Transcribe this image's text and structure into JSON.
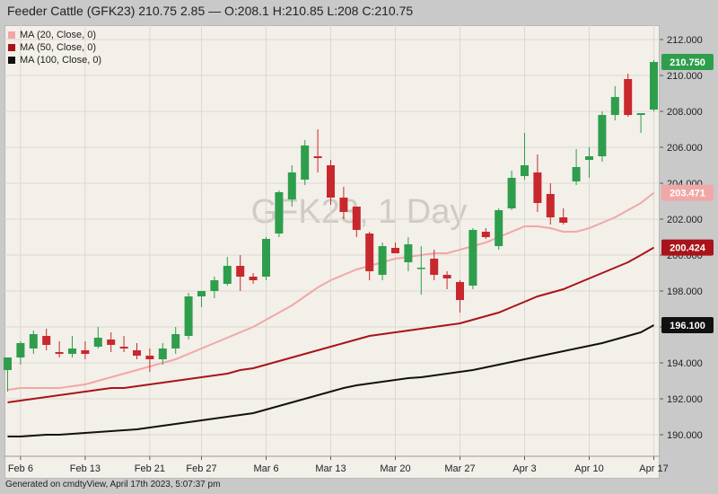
{
  "title": "Feeder Cattle (GFK23) 210.75 2.85 — O:208.1 H:210.85 L:208 C:210.75",
  "watermark": "GFK23, 1 Day",
  "footer": "Generated on cmdtyView, April 17th 2023, 5:07:37 pm",
  "legend": [
    {
      "label": "MA (20, Close, 0)",
      "color": "#f2a7a7"
    },
    {
      "label": "MA (50, Close, 0)",
      "color": "#a8141a"
    },
    {
      "label": "MA (100, Close, 0)",
      "color": "#111111"
    }
  ],
  "chart_data": {
    "type": "candlestick",
    "y_ticks": [
      "212.000",
      "210.000",
      "208.000",
      "206.000",
      "204.000",
      "202.000",
      "200.000",
      "198.000",
      "196.000",
      "194.000",
      "192.000",
      "190.000"
    ],
    "ylim": [
      188.8,
      212.8
    ],
    "x_ticks": [
      {
        "label": "Feb 6",
        "index": 1
      },
      {
        "label": "Feb 13",
        "index": 6
      },
      {
        "label": "Feb 21",
        "index": 11
      },
      {
        "label": "Feb 27",
        "index": 15
      },
      {
        "label": "Mar 6",
        "index": 20
      },
      {
        "label": "Mar 13",
        "index": 25
      },
      {
        "label": "Mar 20",
        "index": 30
      },
      {
        "label": "Mar 27",
        "index": 35
      },
      {
        "label": "Apr 3",
        "index": 40
      },
      {
        "label": "Apr 10",
        "index": 45
      },
      {
        "label": "Apr 17",
        "index": 50
      }
    ],
    "up_color": "#2e9e4d",
    "down_color": "#c8282d",
    "candles": [
      {
        "o": 193.6,
        "h": 194.2,
        "l": 192.4,
        "c": 194.3
      },
      {
        "o": 194.3,
        "h": 195.2,
        "l": 193.9,
        "c": 195.1
      },
      {
        "o": 194.8,
        "h": 195.8,
        "l": 194.5,
        "c": 195.6
      },
      {
        "o": 195.5,
        "h": 195.9,
        "l": 194.7,
        "c": 195.0
      },
      {
        "o": 194.6,
        "h": 195.2,
        "l": 194.3,
        "c": 194.5
      },
      {
        "o": 194.5,
        "h": 195.5,
        "l": 194.3,
        "c": 194.8
      },
      {
        "o": 194.7,
        "h": 195.2,
        "l": 194.2,
        "c": 194.5
      },
      {
        "o": 194.9,
        "h": 196.0,
        "l": 194.8,
        "c": 195.4
      },
      {
        "o": 195.3,
        "h": 195.7,
        "l": 194.6,
        "c": 195.0
      },
      {
        "o": 194.9,
        "h": 195.5,
        "l": 194.6,
        "c": 194.8
      },
      {
        "o": 194.7,
        "h": 195.1,
        "l": 194.2,
        "c": 194.4
      },
      {
        "o": 194.4,
        "h": 194.8,
        "l": 193.5,
        "c": 194.2
      },
      {
        "o": 194.2,
        "h": 195.1,
        "l": 193.9,
        "c": 194.8
      },
      {
        "o": 194.8,
        "h": 196.0,
        "l": 194.5,
        "c": 195.6
      },
      {
        "o": 195.5,
        "h": 197.9,
        "l": 195.3,
        "c": 197.7
      },
      {
        "o": 197.7,
        "h": 198.0,
        "l": 197.1,
        "c": 198.0
      },
      {
        "o": 198.0,
        "h": 198.8,
        "l": 197.6,
        "c": 198.6
      },
      {
        "o": 198.4,
        "h": 199.9,
        "l": 198.3,
        "c": 199.4
      },
      {
        "o": 199.4,
        "h": 200.0,
        "l": 198.0,
        "c": 198.8
      },
      {
        "o": 198.8,
        "h": 199.0,
        "l": 198.4,
        "c": 198.6
      },
      {
        "o": 198.8,
        "h": 201.0,
        "l": 198.6,
        "c": 200.9
      },
      {
        "o": 201.2,
        "h": 203.6,
        "l": 201.0,
        "c": 203.5
      },
      {
        "o": 203.1,
        "h": 205.0,
        "l": 202.7,
        "c": 204.6
      },
      {
        "o": 204.2,
        "h": 206.4,
        "l": 203.9,
        "c": 206.1
      },
      {
        "o": 205.5,
        "h": 207.0,
        "l": 204.6,
        "c": 205.4
      },
      {
        "o": 205.0,
        "h": 205.3,
        "l": 202.8,
        "c": 203.2
      },
      {
        "o": 203.2,
        "h": 203.8,
        "l": 202.0,
        "c": 202.4
      },
      {
        "o": 202.7,
        "h": 202.7,
        "l": 201.0,
        "c": 201.4
      },
      {
        "o": 201.2,
        "h": 201.3,
        "l": 198.6,
        "c": 199.1
      },
      {
        "o": 198.9,
        "h": 200.7,
        "l": 198.6,
        "c": 200.5
      },
      {
        "o": 200.4,
        "h": 200.7,
        "l": 200.1,
        "c": 200.1
      },
      {
        "o": 199.6,
        "h": 201.0,
        "l": 199.1,
        "c": 200.6
      },
      {
        "o": 199.3,
        "h": 200.5,
        "l": 197.8,
        "c": 199.3
      },
      {
        "o": 199.8,
        "h": 200.3,
        "l": 198.6,
        "c": 198.9
      },
      {
        "o": 198.9,
        "h": 199.1,
        "l": 198.1,
        "c": 198.7
      },
      {
        "o": 198.5,
        "h": 198.6,
        "l": 196.8,
        "c": 197.5
      },
      {
        "o": 198.3,
        "h": 201.5,
        "l": 198.1,
        "c": 201.4
      },
      {
        "o": 201.3,
        "h": 201.5,
        "l": 200.9,
        "c": 201.0
      },
      {
        "o": 200.5,
        "h": 202.6,
        "l": 200.3,
        "c": 202.5
      },
      {
        "o": 202.6,
        "h": 204.7,
        "l": 202.5,
        "c": 204.3
      },
      {
        "o": 204.4,
        "h": 206.8,
        "l": 204.2,
        "c": 205.0
      },
      {
        "o": 204.6,
        "h": 205.6,
        "l": 202.4,
        "c": 202.9
      },
      {
        "o": 203.4,
        "h": 204.0,
        "l": 201.7,
        "c": 202.1
      },
      {
        "o": 202.1,
        "h": 202.6,
        "l": 201.7,
        "c": 201.8
      },
      {
        "o": 204.1,
        "h": 205.9,
        "l": 203.9,
        "c": 204.9
      },
      {
        "o": 205.3,
        "h": 206.0,
        "l": 204.3,
        "c": 205.5
      },
      {
        "o": 205.5,
        "h": 208.0,
        "l": 205.2,
        "c": 207.8
      },
      {
        "o": 207.8,
        "h": 209.4,
        "l": 207.5,
        "c": 208.8
      },
      {
        "o": 209.8,
        "h": 210.1,
        "l": 207.7,
        "c": 207.8
      },
      {
        "o": 207.8,
        "h": 207.9,
        "l": 206.8,
        "c": 207.9
      },
      {
        "o": 208.1,
        "h": 210.85,
        "l": 208.0,
        "c": 210.75
      }
    ],
    "series": [
      {
        "name": "MA (20, Close, 0)",
        "color": "#f2a7a7",
        "last": "203.471",
        "values": [
          192.5,
          192.6,
          192.6,
          192.6,
          192.6,
          192.7,
          192.8,
          193.0,
          193.2,
          193.4,
          193.6,
          193.8,
          194.0,
          194.2,
          194.5,
          194.8,
          195.1,
          195.4,
          195.7,
          196.0,
          196.4,
          196.8,
          197.2,
          197.7,
          198.2,
          198.6,
          198.9,
          199.2,
          199.4,
          199.6,
          199.8,
          199.9,
          200.0,
          200.1,
          200.1,
          200.3,
          200.5,
          200.7,
          201.0,
          201.3,
          201.6,
          201.6,
          201.5,
          201.3,
          201.3,
          201.5,
          201.8,
          202.1,
          202.5,
          202.9,
          203.47
        ]
      },
      {
        "name": "MA (50, Close, 0)",
        "color": "#a8141a",
        "last": "200.424",
        "values": [
          191.8,
          191.9,
          192.0,
          192.1,
          192.2,
          192.3,
          192.4,
          192.5,
          192.6,
          192.6,
          192.7,
          192.8,
          192.9,
          193.0,
          193.1,
          193.2,
          193.3,
          193.4,
          193.6,
          193.7,
          193.9,
          194.1,
          194.3,
          194.5,
          194.7,
          194.9,
          195.1,
          195.3,
          195.5,
          195.6,
          195.7,
          195.8,
          195.9,
          196.0,
          196.1,
          196.2,
          196.4,
          196.6,
          196.8,
          197.1,
          197.4,
          197.7,
          197.9,
          198.1,
          198.4,
          198.7,
          199.0,
          199.3,
          199.6,
          200.0,
          200.42
        ]
      },
      {
        "name": "MA (100, Close, 0)",
        "color": "#111111",
        "last": "196.100",
        "values": [
          189.9,
          189.9,
          189.95,
          190.0,
          190.0,
          190.05,
          190.1,
          190.15,
          190.2,
          190.25,
          190.3,
          190.4,
          190.5,
          190.6,
          190.7,
          190.8,
          190.9,
          191.0,
          191.1,
          191.2,
          191.4,
          191.6,
          191.8,
          192.0,
          192.2,
          192.4,
          192.6,
          192.75,
          192.85,
          192.95,
          193.05,
          193.15,
          193.2,
          193.3,
          193.4,
          193.5,
          193.6,
          193.75,
          193.9,
          194.05,
          194.2,
          194.35,
          194.5,
          194.65,
          194.8,
          194.95,
          195.1,
          195.3,
          195.5,
          195.7,
          196.1
        ]
      }
    ],
    "last_price": {
      "label": "210.750",
      "value": 210.75,
      "color": "#2e9e4d"
    }
  }
}
